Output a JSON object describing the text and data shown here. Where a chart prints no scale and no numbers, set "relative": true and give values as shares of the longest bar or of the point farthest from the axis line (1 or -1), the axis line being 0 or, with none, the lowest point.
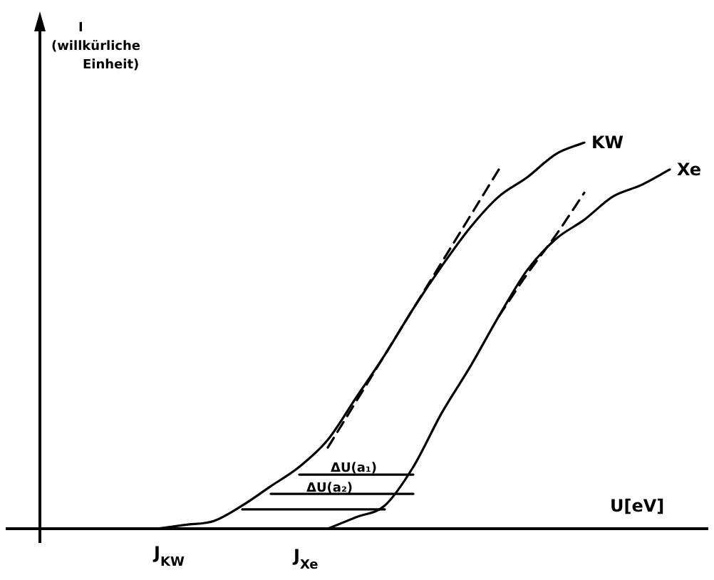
{
  "chart_data": {
    "type": "line",
    "relative": true,
    "xlabel": "U[eV]",
    "legend": false,
    "marker": "none",
    "annotations": [
      "J$_{KW}$",
      "J$_{Xe}$",
      "ΔU(a₁)",
      "ΔU(a₂)",
      "I (willkürliche Einheit)"
    ],
    "categories": [
      null,
      null,
      null,
      null,
      null,
      null,
      null,
      null,
      null,
      null,
      null,
      null,
      null,
      null,
      null,
      null,
      null,
      null,
      null,
      null,
      null,
      null,
      null,
      null
    ],
    "series": [
      {
        "name": "KW",
        "color": "#000000",
        "line_style": "solid",
        "values": [
          null,
          null,
          null,
          null,
          0,
          0.01,
          0.02,
          0.06,
          0.11,
          0.16,
          0.23,
          0.34,
          0.45,
          0.57,
          0.68,
          0.78,
          0.86,
          0.91,
          0.97,
          1,
          null,
          null,
          null,
          null
        ]
      },
      {
        "name": "Xe",
        "color": "#000000",
        "line_style": "solid",
        "values": [
          null,
          null,
          null,
          null,
          null,
          null,
          null,
          null,
          null,
          null,
          0,
          0.03,
          0.06,
          0.16,
          0.3,
          0.42,
          0.55,
          0.67,
          0.75,
          0.8,
          0.86,
          0.89,
          0.93,
          null
        ]
      },
      {
        "color": "#000000",
        "line_style": "dashed",
        "values": [
          null,
          null,
          null,
          null,
          null,
          null,
          null,
          null,
          null,
          null,
          0.21,
          0.33,
          0.45,
          0.57,
          0.69,
          0.81,
          0.93,
          null,
          null,
          null,
          null,
          null,
          null,
          null
        ]
      },
      {
        "color": "#000000",
        "line_style": "dashed",
        "values": [
          null,
          null,
          null,
          null,
          null,
          null,
          null,
          null,
          null,
          null,
          null,
          null,
          null,
          null,
          null,
          null,
          0.55,
          0.66,
          0.76,
          0.87,
          null,
          null,
          null,
          null
        ]
      },
      {
        "color": "#000000",
        "line_style": "solid",
        "values": [
          null,
          null,
          null,
          null,
          null,
          null,
          null,
          0.05,
          0.05,
          0.05,
          0.05,
          0.05,
          0.05,
          null,
          null,
          null,
          null,
          null,
          null,
          null,
          null,
          null,
          null,
          null
        ]
      },
      {
        "color": "#000000",
        "line_style": "solid",
        "values": [
          null,
          null,
          null,
          null,
          null,
          null,
          null,
          null,
          0.09,
          0.09,
          0.09,
          0.09,
          0.09,
          0.09,
          null,
          null,
          null,
          null,
          null,
          null,
          null,
          null,
          null,
          null
        ]
      },
      {
        "color": "#000000",
        "line_style": "solid",
        "values": [
          null,
          null,
          null,
          null,
          null,
          null,
          null,
          null,
          null,
          0.14,
          0.14,
          0.14,
          0.14,
          0.14,
          null,
          null,
          null,
          null,
          null,
          null,
          null,
          null,
          null,
          null
        ]
      }
    ]
  }
}
